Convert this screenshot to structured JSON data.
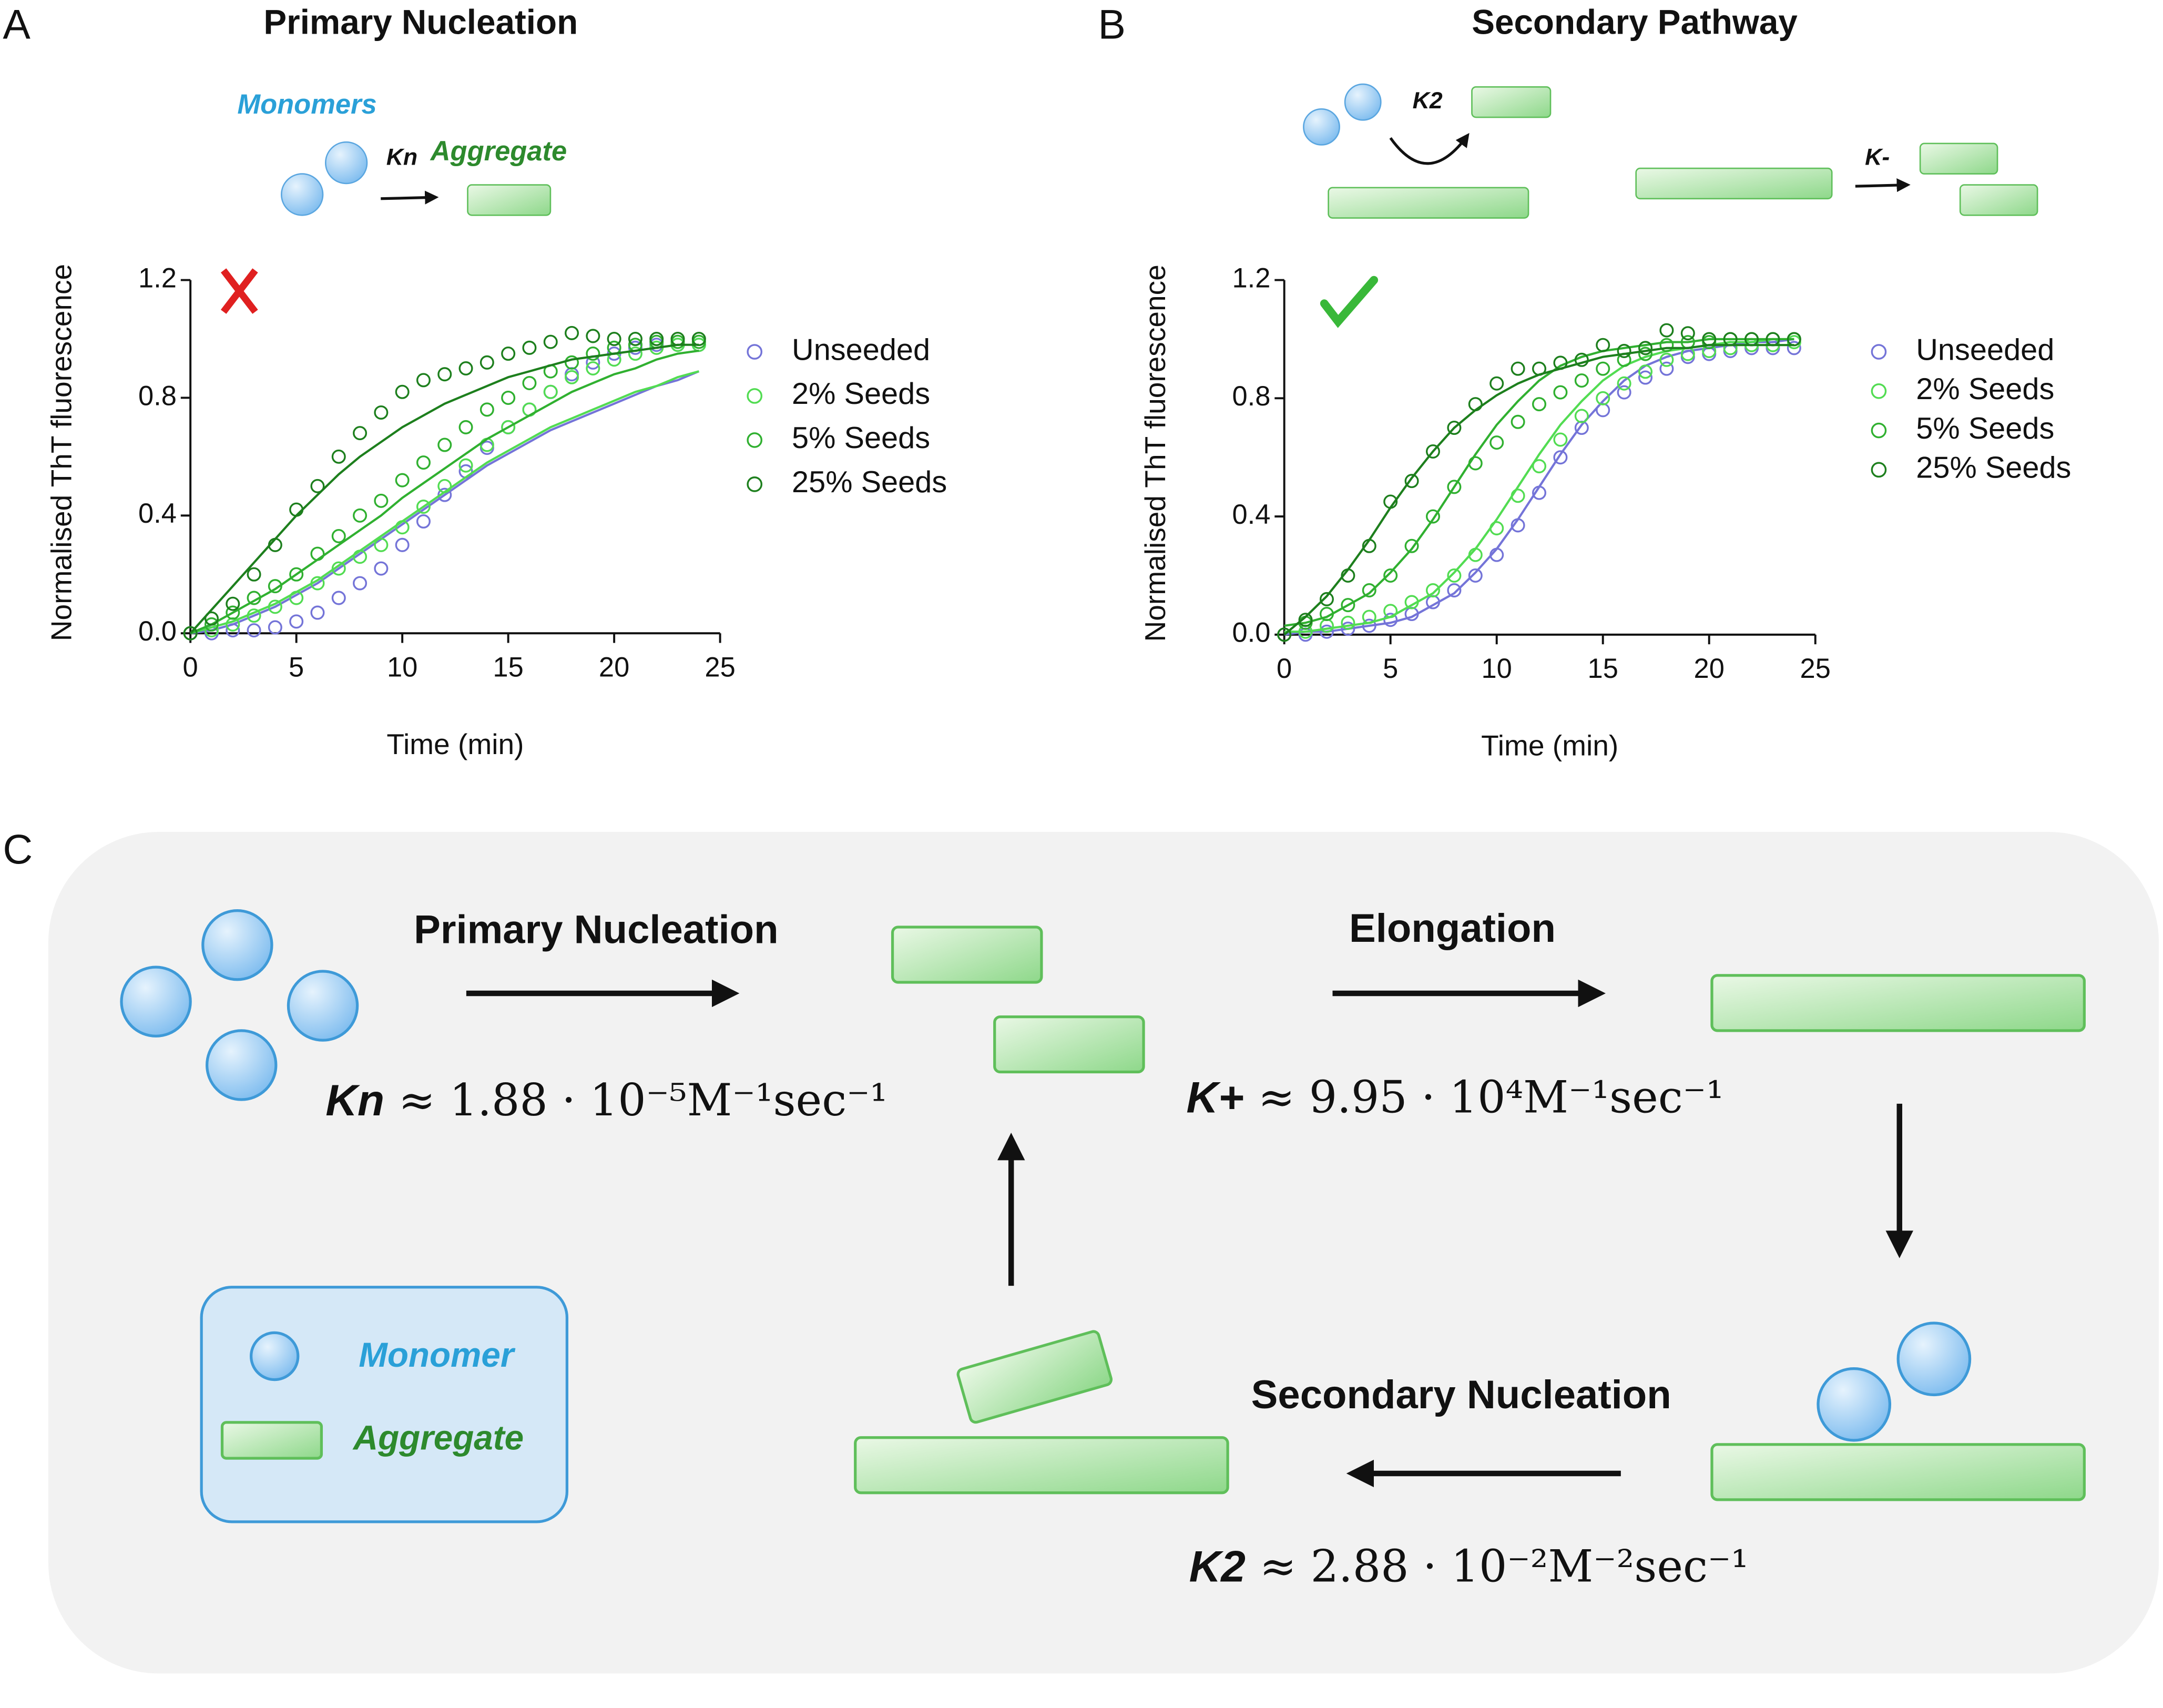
{
  "chart_data": [
    {
      "type": "scatter",
      "title": "Primary Nucleation",
      "x_label": "Time (min)",
      "y_label": "Normalised ThT fluorescence",
      "x": [
        0,
        1,
        2,
        3,
        4,
        5,
        6,
        7,
        8,
        9,
        10,
        11,
        12,
        13,
        14,
        15,
        16,
        17,
        18,
        19,
        20,
        21,
        22,
        23,
        24
      ],
      "xlim": [
        0,
        25
      ],
      "xticks": [
        0,
        5,
        10,
        15,
        20,
        25
      ],
      "ylim": [
        0,
        1.2
      ],
      "yticks": [
        {
          "value": 0,
          "label": "0.0"
        },
        {
          "value": 0.4,
          "label": "0.4"
        },
        {
          "value": 0.8,
          "label": "0.8"
        },
        {
          "value": 1.2,
          "label": "1.2"
        }
      ],
      "series": [
        {
          "name": "Unseeded",
          "color": "#7474d8",
          "values": [
            0,
            0,
            0.01,
            0.01,
            0.02,
            0.04,
            0.07,
            0.12,
            0.17,
            0.22,
            0.3,
            0.38,
            0.47,
            0.55,
            0.63,
            0.7,
            0.76,
            0.82,
            0.88,
            0.92,
            0.95,
            0.97,
            0.98,
            0.98,
            0.98
          ],
          "fit": [
            0,
            0.01,
            0.03,
            0.06,
            0.09,
            0.13,
            0.17,
            0.22,
            0.27,
            0.32,
            0.37,
            0.42,
            0.47,
            0.52,
            0.57,
            0.61,
            0.65,
            0.69,
            0.72,
            0.75,
            0.78,
            0.81,
            0.84,
            0.86,
            0.89
          ]
        },
        {
          "name": "2% Seeds",
          "color": "#52dc52",
          "values": [
            0,
            0.01,
            0.03,
            0.06,
            0.09,
            0.12,
            0.17,
            0.22,
            0.26,
            0.3,
            0.36,
            0.43,
            0.5,
            0.57,
            0.64,
            0.7,
            0.76,
            0.82,
            0.87,
            0.9,
            0.93,
            0.95,
            0.97,
            0.98,
            0.98
          ],
          "fit": [
            0,
            0.02,
            0.04,
            0.07,
            0.1,
            0.14,
            0.18,
            0.23,
            0.28,
            0.33,
            0.38,
            0.43,
            0.48,
            0.53,
            0.58,
            0.62,
            0.66,
            0.7,
            0.73,
            0.76,
            0.79,
            0.82,
            0.84,
            0.87,
            0.89
          ]
        },
        {
          "name": "5% Seeds",
          "color": "#30b030",
          "values": [
            0,
            0.03,
            0.07,
            0.12,
            0.16,
            0.2,
            0.27,
            0.33,
            0.4,
            0.45,
            0.52,
            0.58,
            0.64,
            0.7,
            0.76,
            0.8,
            0.85,
            0.89,
            0.92,
            0.95,
            0.97,
            0.98,
            0.99,
            0.99,
            0.99
          ],
          "fit": [
            0,
            0.03,
            0.07,
            0.11,
            0.15,
            0.2,
            0.25,
            0.3,
            0.35,
            0.4,
            0.46,
            0.51,
            0.56,
            0.61,
            0.66,
            0.7,
            0.74,
            0.78,
            0.82,
            0.85,
            0.88,
            0.9,
            0.93,
            0.95,
            0.96
          ]
        },
        {
          "name": "25% Seeds",
          "color": "#1d7f1d",
          "values": [
            0,
            0.05,
            0.1,
            0.2,
            0.3,
            0.42,
            0.5,
            0.6,
            0.68,
            0.75,
            0.82,
            0.86,
            0.88,
            0.9,
            0.92,
            0.95,
            0.97,
            0.99,
            1.02,
            1.01,
            1,
            1,
            1,
            1,
            1
          ],
          "fit": [
            0,
            0.08,
            0.16,
            0.24,
            0.32,
            0.4,
            0.47,
            0.54,
            0.6,
            0.65,
            0.7,
            0.74,
            0.78,
            0.81,
            0.84,
            0.87,
            0.89,
            0.91,
            0.93,
            0.94,
            0.95,
            0.96,
            0.97,
            0.98,
            0.98
          ]
        }
      ]
    },
    {
      "type": "scatter",
      "title": "Secondary Pathway",
      "x_label": "Time (min)",
      "y_label": "Normalised ThT fluorescence",
      "x": [
        0,
        1,
        2,
        3,
        4,
        5,
        6,
        7,
        8,
        9,
        10,
        11,
        12,
        13,
        14,
        15,
        16,
        17,
        18,
        19,
        20,
        21,
        22,
        23,
        24
      ],
      "xlim": [
        0,
        25
      ],
      "xticks": [
        0,
        5,
        10,
        15,
        20,
        25
      ],
      "ylim": [
        0,
        1.2
      ],
      "yticks": [
        {
          "value": 0,
          "label": "0.0"
        },
        {
          "value": 0.4,
          "label": "0.4"
        },
        {
          "value": 0.8,
          "label": "0.8"
        },
        {
          "value": 1.2,
          "label": "1.2"
        }
      ],
      "series": [
        {
          "name": "Unseeded",
          "color": "#7474d8",
          "values": [
            0,
            0,
            0.01,
            0.02,
            0.03,
            0.05,
            0.07,
            0.11,
            0.15,
            0.2,
            0.27,
            0.37,
            0.48,
            0.6,
            0.7,
            0.76,
            0.82,
            0.87,
            0.9,
            0.94,
            0.95,
            0.96,
            0.97,
            0.97,
            0.97
          ],
          "fit": [
            0,
            0.01,
            0.01,
            0.02,
            0.03,
            0.04,
            0.06,
            0.1,
            0.14,
            0.21,
            0.29,
            0.39,
            0.5,
            0.61,
            0.71,
            0.79,
            0.86,
            0.91,
            0.94,
            0.96,
            0.97,
            0.98,
            0.99,
            0.99,
            1
          ]
        },
        {
          "name": "2% Seeds",
          "color": "#52dc52",
          "values": [
            0,
            0.01,
            0.03,
            0.04,
            0.06,
            0.08,
            0.11,
            0.15,
            0.2,
            0.27,
            0.36,
            0.47,
            0.57,
            0.66,
            0.74,
            0.8,
            0.85,
            0.89,
            0.93,
            0.95,
            0.96,
            0.97,
            0.98,
            0.98,
            0.99
          ],
          "fit": [
            0.01,
            0.01,
            0.02,
            0.03,
            0.04,
            0.06,
            0.1,
            0.14,
            0.21,
            0.29,
            0.39,
            0.5,
            0.61,
            0.71,
            0.79,
            0.86,
            0.91,
            0.94,
            0.96,
            0.97,
            0.98,
            0.99,
            0.99,
            1,
            1
          ]
        },
        {
          "name": "5% Seeds",
          "color": "#30b030",
          "values": [
            0,
            0.04,
            0.07,
            0.1,
            0.15,
            0.2,
            0.3,
            0.4,
            0.5,
            0.58,
            0.65,
            0.72,
            0.78,
            0.82,
            0.86,
            0.9,
            0.93,
            0.95,
            0.98,
            0.99,
            0.99,
            1,
            1,
            1,
            1
          ],
          "fit": [
            0.03,
            0.04,
            0.06,
            0.1,
            0.14,
            0.21,
            0.29,
            0.39,
            0.5,
            0.61,
            0.71,
            0.79,
            0.86,
            0.91,
            0.94,
            0.96,
            0.97,
            0.98,
            0.99,
            0.99,
            1,
            1,
            1,
            1,
            1
          ]
        },
        {
          "name": "25% Seeds",
          "color": "#1d7f1d",
          "values": [
            0,
            0.05,
            0.12,
            0.2,
            0.3,
            0.45,
            0.52,
            0.62,
            0.7,
            0.78,
            0.85,
            0.9,
            0.9,
            0.92,
            0.93,
            0.98,
            0.96,
            0.97,
            1.03,
            1.02,
            1,
            1,
            1,
            1,
            1
          ],
          "fit": [
            0,
            0.06,
            0.13,
            0.22,
            0.32,
            0.43,
            0.53,
            0.62,
            0.7,
            0.76,
            0.81,
            0.85,
            0.88,
            0.9,
            0.92,
            0.94,
            0.95,
            0.96,
            0.97,
            0.97,
            0.98,
            0.98,
            0.98,
            0.98,
            0.98
          ]
        }
      ]
    }
  ],
  "panels": {
    "a": "A",
    "b": "B",
    "c": "C"
  },
  "scheme_a": {
    "monomers": "Monomers",
    "rate": "Kn",
    "aggregate": "Aggregate"
  },
  "scheme_b": {
    "secondary_rate": "K2",
    "fragmentation_rate": "K-"
  },
  "cycle": {
    "primary": {
      "label": "Primary Nucleation",
      "symbol": "Kn",
      "expression": "≈ 1.88 · 10⁻⁵M⁻¹sec⁻¹"
    },
    "elongation": {
      "label": "Elongation",
      "symbol": "K+",
      "expression": "≈ 9.95  · 10⁴M⁻¹sec⁻¹"
    },
    "secondary": {
      "label": "Secondary Nucleation",
      "symbol": "K2",
      "expression": "≈ 2.88  · 10⁻²M⁻²sec⁻¹"
    },
    "legend": {
      "monomer": "Monomer",
      "aggregate": "Aggregate"
    }
  }
}
